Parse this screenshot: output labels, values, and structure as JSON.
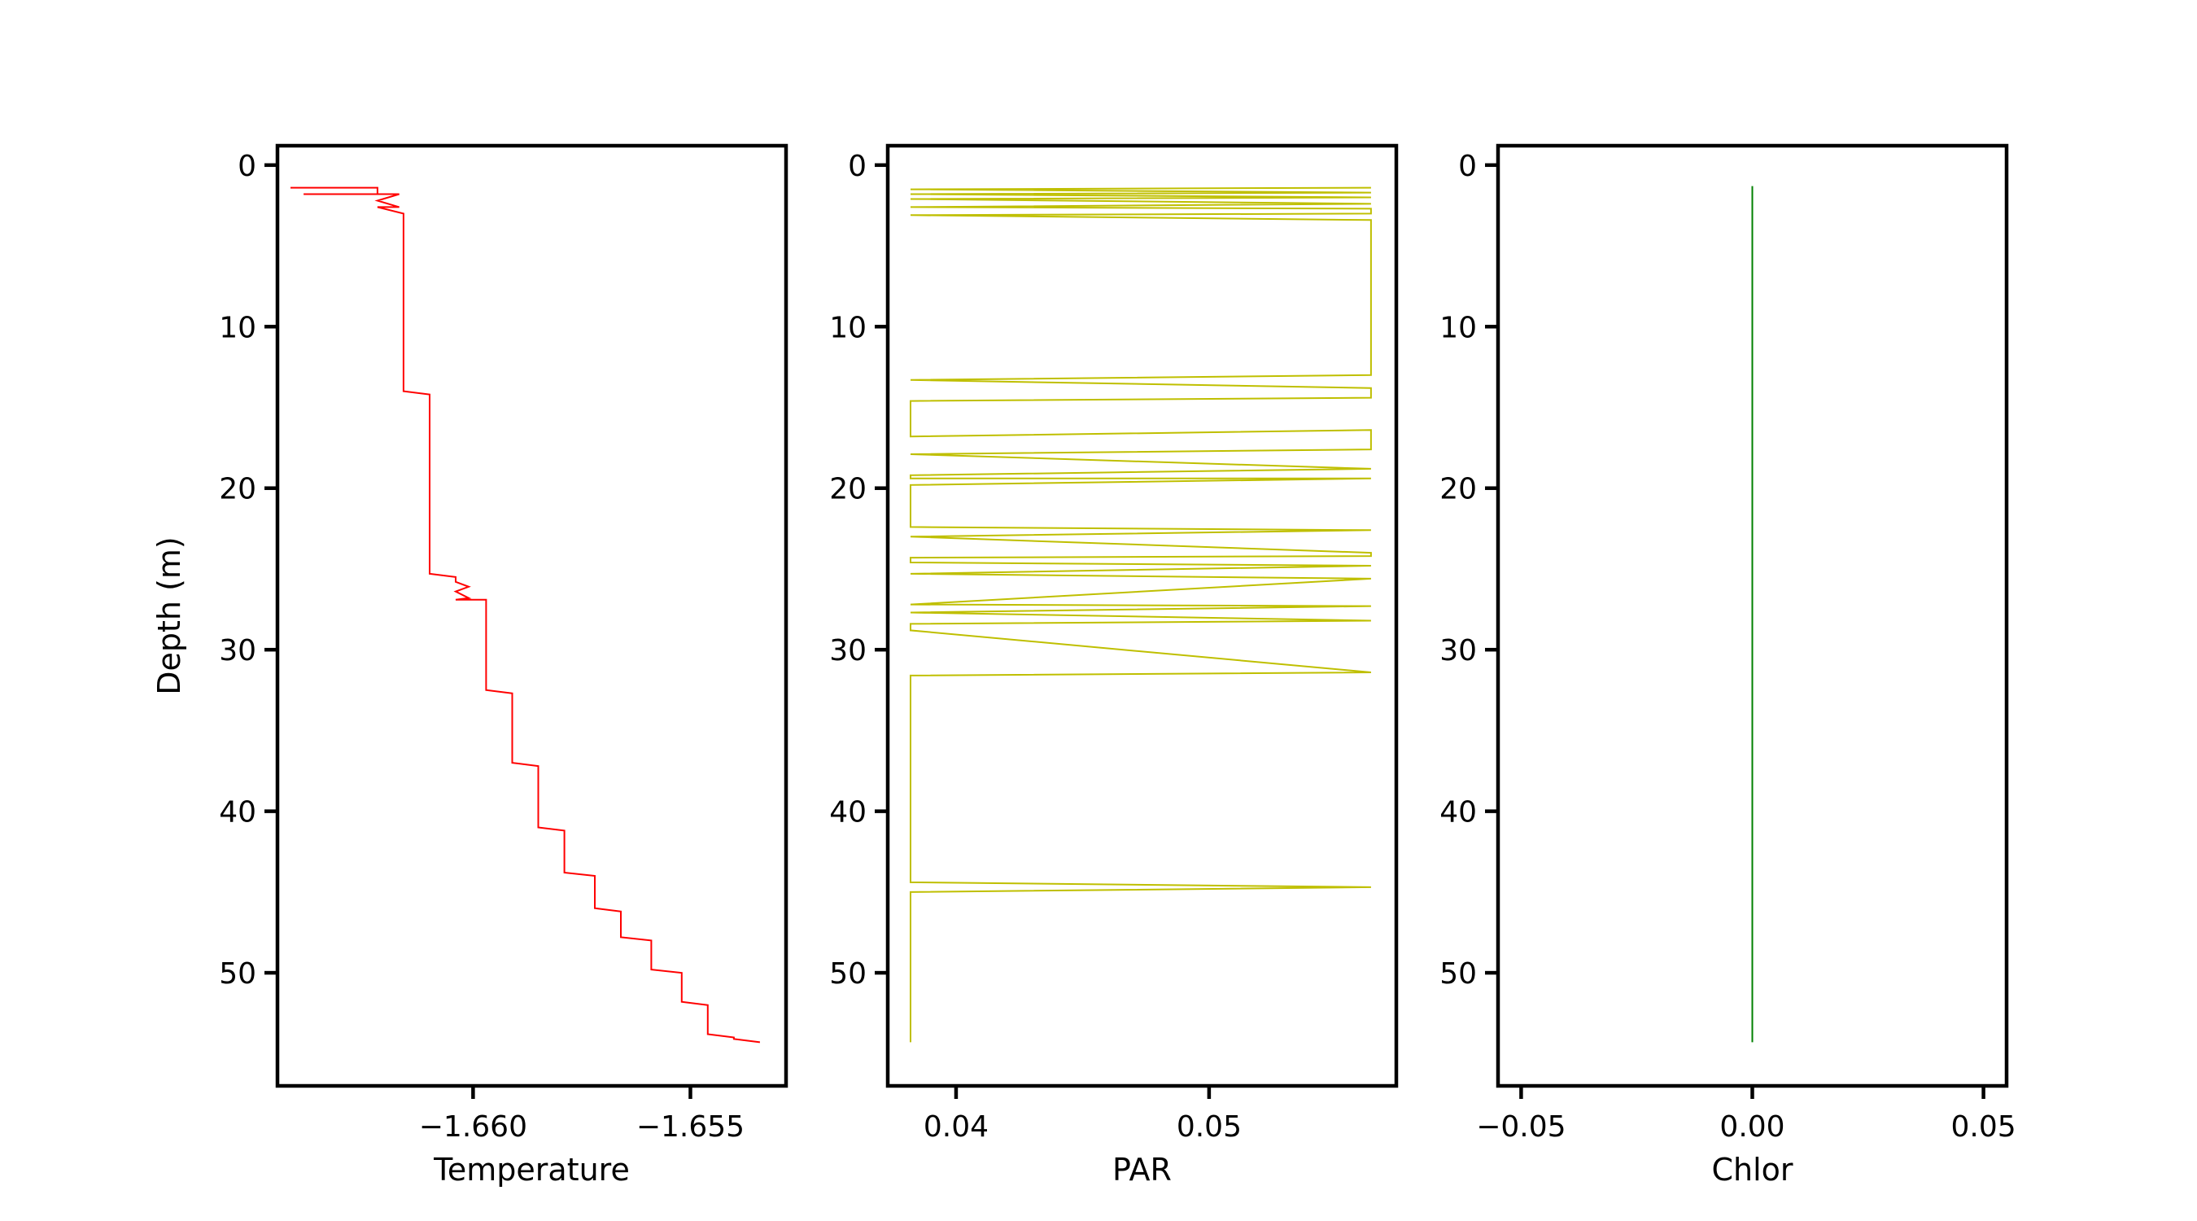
{
  "chart_data": [
    {
      "type": "line",
      "xlabel": "Temperature",
      "ylabel": "Depth (m)",
      "xlim": [
        -1.6645,
        -1.6528
      ],
      "ylim": [
        57,
        -1.2
      ],
      "xticks": [
        -1.66,
        -1.655
      ],
      "xtick_labels": [
        "−1.660",
        "−1.655"
      ],
      "yticks": [
        0,
        10,
        20,
        30,
        40,
        50
      ],
      "ytick_labels": [
        "0",
        "10",
        "20",
        "30",
        "40",
        "50"
      ],
      "color": "#ff0000",
      "grid": false,
      "series": [
        {
          "x": [
            -1.6642,
            -1.6622,
            -1.6622,
            -1.6639,
            -1.6617,
            -1.6622,
            -1.6617,
            -1.6622,
            -1.6616,
            -1.6616,
            -1.661,
            -1.661,
            -1.6604,
            -1.6604,
            -1.6601,
            -1.6604,
            -1.6601,
            -1.6604,
            -1.6597,
            -1.6597,
            -1.6591,
            -1.6591,
            -1.6585,
            -1.6585,
            -1.6579,
            -1.6579,
            -1.6572,
            -1.6572,
            -1.6566,
            -1.6566,
            -1.6559,
            -1.6559,
            -1.6552,
            -1.6552,
            -1.6546,
            -1.6546,
            -1.654,
            -1.654,
            -1.6534
          ],
          "y": [
            1.4,
            1.4,
            1.8,
            1.8,
            1.8,
            2.2,
            2.6,
            2.6,
            3.0,
            14.0,
            14.2,
            25.3,
            25.5,
            25.8,
            26.1,
            26.4,
            26.8,
            26.9,
            26.9,
            32.5,
            32.7,
            37.0,
            37.2,
            41.0,
            41.2,
            43.8,
            44.0,
            46.0,
            46.2,
            47.8,
            48.0,
            49.8,
            50.0,
            51.8,
            52.0,
            53.8,
            54.0,
            54.1,
            54.3
          ]
        }
      ]
    },
    {
      "type": "line",
      "xlabel": "PAR",
      "ylabel": "",
      "xlim": [
        0.0373,
        0.0574
      ],
      "ylim": [
        57,
        -1.2
      ],
      "xticks": [
        0.04,
        0.05
      ],
      "xtick_labels": [
        "0.04",
        "0.05"
      ],
      "yticks": [
        0,
        10,
        20,
        30,
        40,
        50
      ],
      "ytick_labels": [
        "0",
        "10",
        "20",
        "30",
        "40",
        "50"
      ],
      "color": "#bfbf00",
      "grid": false,
      "series": [
        {
          "x": [
            0.0564,
            0.0382,
            0.0564,
            0.0382,
            0.0564,
            0.0382,
            0.0564,
            0.0382,
            0.0564,
            0.0564,
            0.0382,
            0.0564,
            0.0564,
            0.0382,
            0.0564,
            0.0564,
            0.0382,
            0.0382,
            0.0564,
            0.0564,
            0.0382,
            0.0564,
            0.0382,
            0.0382,
            0.0564,
            0.0382,
            0.0382,
            0.0564,
            0.0382,
            0.0564,
            0.0564,
            0.0382,
            0.0382,
            0.0564,
            0.0382,
            0.0564,
            0.0382,
            0.0564,
            0.0382,
            0.0564,
            0.0382,
            0.0382,
            0.0564,
            0.0382,
            0.0382,
            0.0564,
            0.0382,
            0.0382
          ],
          "y": [
            1.4,
            1.5,
            1.7,
            1.8,
            2.0,
            2.1,
            2.4,
            2.6,
            2.7,
            3.0,
            3.1,
            3.4,
            13.0,
            13.3,
            13.8,
            14.4,
            14.6,
            16.8,
            16.4,
            17.6,
            17.9,
            18.8,
            19.2,
            19.4,
            19.4,
            19.8,
            22.4,
            22.6,
            23.0,
            24.0,
            24.2,
            24.3,
            24.6,
            24.8,
            25.3,
            25.6,
            27.2,
            27.3,
            27.7,
            28.2,
            28.4,
            28.8,
            31.4,
            31.6,
            44.4,
            44.7,
            45.0,
            54.3
          ]
        }
      ]
    },
    {
      "type": "line",
      "xlabel": "Chlor",
      "ylabel": "",
      "xlim": [
        -0.055,
        0.055
      ],
      "ylim": [
        57,
        -1.2
      ],
      "xticks": [
        -0.05,
        0.0,
        0.05
      ],
      "xtick_labels": [
        "−0.05",
        "0.00",
        "0.05"
      ],
      "yticks": [
        0,
        10,
        20,
        30,
        40,
        50
      ],
      "ytick_labels": [
        "0",
        "10",
        "20",
        "30",
        "40",
        "50"
      ],
      "color": "#008000",
      "grid": false,
      "series": [
        {
          "x": [
            0.0,
            0.0
          ],
          "y": [
            1.3,
            54.3
          ]
        }
      ]
    }
  ]
}
